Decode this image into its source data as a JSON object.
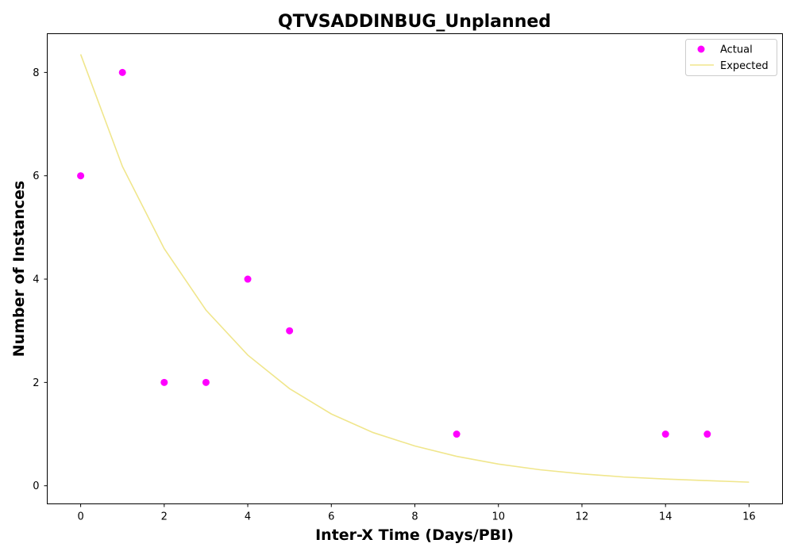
{
  "chart_data": {
    "type": "scatter",
    "title": "QTVSADDINBUG_Unplanned",
    "xlabel": "Inter-X Time (Days/PBI)",
    "ylabel": "Number of Instances",
    "xlim": [
      -0.8,
      16.8
    ],
    "ylim": [
      -0.35,
      8.75
    ],
    "xticks": [
      0,
      2,
      4,
      6,
      8,
      10,
      12,
      14,
      16
    ],
    "yticks": [
      0,
      2,
      4,
      6,
      8
    ],
    "grid": false,
    "legend_position": "top-right",
    "series": [
      {
        "name": "Actual",
        "kind": "scatter",
        "color": "#ff00ff",
        "x": [
          0,
          1,
          2,
          3,
          4,
          5,
          9,
          14,
          15
        ],
        "y": [
          6,
          8,
          2,
          2,
          4,
          3,
          1,
          1,
          1
        ]
      },
      {
        "name": "Expected",
        "kind": "line",
        "color": "#f0e68c",
        "x": [
          0,
          1,
          2,
          3,
          4,
          5,
          6,
          7,
          8,
          9,
          10,
          11,
          12,
          13,
          14,
          15,
          16
        ],
        "y": [
          8.35,
          6.18,
          4.59,
          3.4,
          2.53,
          1.88,
          1.39,
          1.03,
          0.77,
          0.57,
          0.42,
          0.31,
          0.23,
          0.17,
          0.13,
          0.1,
          0.07
        ]
      }
    ]
  }
}
